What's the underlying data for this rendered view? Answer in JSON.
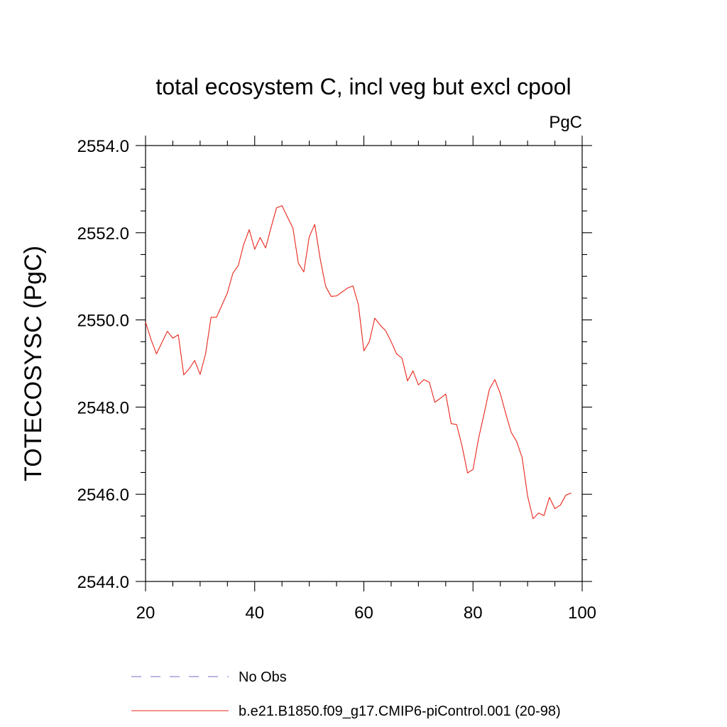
{
  "chart_data": {
    "type": "line",
    "title": "total ecosystem C, incl veg but excl cpool",
    "units": "PgC",
    "ylabel": "TOTECOSYSC  (PgC)",
    "xlabel": "",
    "xlim": [
      20,
      100
    ],
    "ylim": [
      2544.0,
      2554.0
    ],
    "x_ticks": [
      20,
      40,
      60,
      80,
      100
    ],
    "x_tick_labels": [
      "20",
      "40",
      "60",
      "80",
      "100"
    ],
    "y_ticks": [
      2544.0,
      2546.0,
      2548.0,
      2550.0,
      2552.0,
      2554.0
    ],
    "y_tick_labels": [
      "2544.0",
      "2546.0",
      "2548.0",
      "2550.0",
      "2552.0",
      "2554.0"
    ],
    "grid": false,
    "legend": {
      "position": "bottom",
      "entries": [
        {
          "label": "No Obs",
          "color": "#7b68c8",
          "style": "dashed"
        },
        {
          "label": "b.e21.B1850.f09_g17.CMIP6-piControl.001 (20-98)",
          "color": "#e8261a",
          "style": "solid"
        }
      ]
    },
    "series": [
      {
        "name": "b.e21.B1850.f09_g17.CMIP6-piControl.001 (20-98)",
        "color": "#e8261a",
        "x": [
          20,
          21,
          22,
          23,
          24,
          25,
          26,
          27,
          28,
          29,
          30,
          31,
          32,
          33,
          34,
          35,
          36,
          37,
          38,
          39,
          40,
          41,
          42,
          43,
          44,
          45,
          46,
          47,
          48,
          49,
          50,
          51,
          52,
          53,
          54,
          55,
          56,
          57,
          58,
          59,
          60,
          61,
          62,
          63,
          64,
          65,
          66,
          67,
          68,
          69,
          70,
          71,
          72,
          73,
          74,
          75,
          76,
          77,
          78,
          79,
          80,
          81,
          82,
          83,
          84,
          85,
          86,
          87,
          88,
          89,
          90,
          91,
          92,
          93,
          94,
          95,
          96,
          97,
          98
        ],
        "values": [
          2549.95,
          2549.55,
          2549.22,
          2549.48,
          2549.74,
          2549.58,
          2549.66,
          2548.74,
          2548.88,
          2549.07,
          2548.75,
          2549.22,
          2550.06,
          2550.06,
          2550.34,
          2550.62,
          2551.07,
          2551.25,
          2551.74,
          2552.07,
          2551.62,
          2551.89,
          2551.65,
          2552.12,
          2552.57,
          2552.62,
          2552.36,
          2552.11,
          2551.3,
          2551.1,
          2551.91,
          2552.19,
          2551.4,
          2550.77,
          2550.54,
          2550.55,
          2550.64,
          2550.73,
          2550.78,
          2550.35,
          2549.29,
          2549.5,
          2550.04,
          2549.88,
          2549.75,
          2549.5,
          2549.22,
          2549.12,
          2548.6,
          2548.83,
          2548.51,
          2548.63,
          2548.57,
          2548.11,
          2548.2,
          2548.3,
          2547.62,
          2547.6,
          2547.1,
          2546.49,
          2546.57,
          2547.27,
          2547.83,
          2548.41,
          2548.63,
          2548.31,
          2547.85,
          2547.42,
          2547.21,
          2546.84,
          2545.96,
          2545.44,
          2545.57,
          2545.51,
          2545.93,
          2545.67,
          2545.75,
          2545.98,
          2546.03
        ]
      }
    ]
  }
}
